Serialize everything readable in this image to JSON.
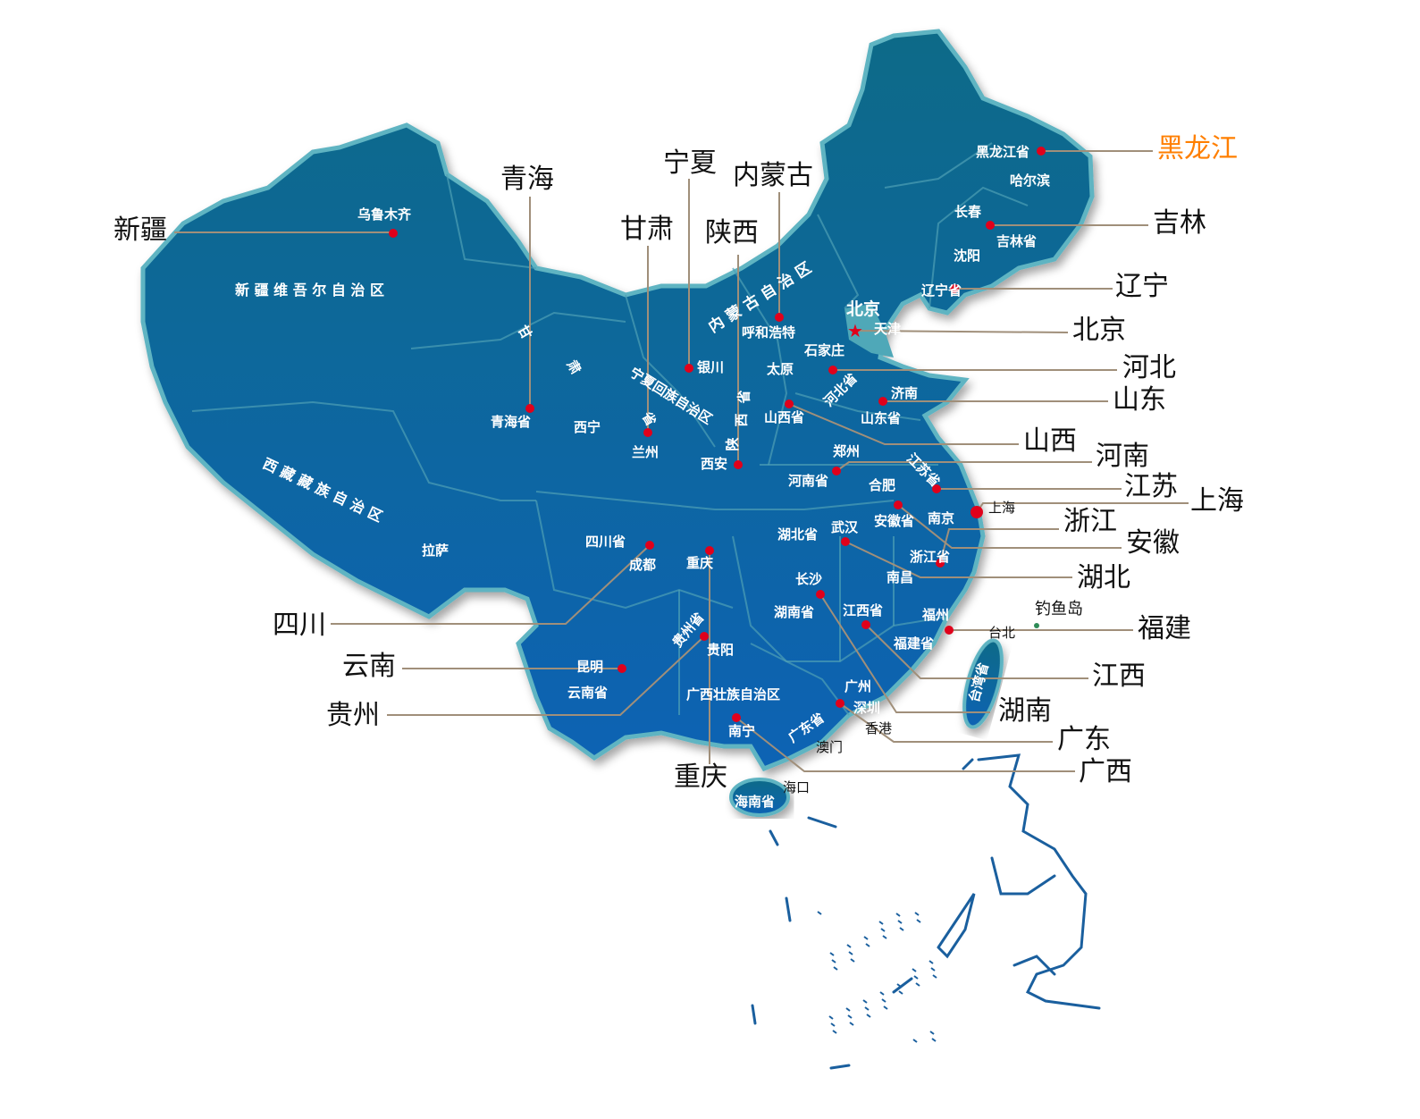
{
  "colors": {
    "map_top": "#0c6a88",
    "map_bottom": "#0b63b4",
    "coast_glow": "#5fb4c2",
    "marker": "#e0001b",
    "leader_line": "#a08f7a",
    "highlight": "#ff7f00",
    "callout_text": "#111111",
    "diaoyu_marker": "#2e8b57"
  },
  "callouts": [
    {
      "label": "新疆"
    },
    {
      "label": "青海"
    },
    {
      "label": "宁夏"
    },
    {
      "label": "内蒙古"
    },
    {
      "label": "甘肃"
    },
    {
      "label": "陕西"
    },
    {
      "label": "黑龙江",
      "highlighted": true
    },
    {
      "label": "吉林"
    },
    {
      "label": "辽宁"
    },
    {
      "label": "北京"
    },
    {
      "label": "河北"
    },
    {
      "label": "山东"
    },
    {
      "label": "山西"
    },
    {
      "label": "河南"
    },
    {
      "label": "江苏"
    },
    {
      "label": "上海"
    },
    {
      "label": "浙江"
    },
    {
      "label": "安徽"
    },
    {
      "label": "湖北"
    },
    {
      "label": "福建"
    },
    {
      "label": "江西"
    },
    {
      "label": "湖南"
    },
    {
      "label": "广东"
    },
    {
      "label": "广西"
    },
    {
      "label": "重庆"
    },
    {
      "label": "四川"
    },
    {
      "label": "云南"
    },
    {
      "label": "贵州"
    }
  ],
  "map_labels": [
    "乌鲁木齐",
    "新 疆 维 吾 尔 自 治 区",
    "甘",
    "肃",
    "省",
    "西宁",
    "青海省",
    "兰州",
    "银川",
    "宁夏回族自治区",
    "内 蒙 古 自 治 区",
    "呼和浩特",
    "北京",
    "天津",
    "石家庄",
    "太原",
    "河北省",
    "济南",
    "山西省",
    "山东省",
    "陕",
    "西",
    "省",
    "西安",
    "郑州",
    "江苏省",
    "河南省",
    "合肥",
    "安徽省",
    "南京",
    "上海",
    "四川省",
    "成都",
    "重庆",
    "湖北省",
    "武汉",
    "浙江省",
    "南昌",
    "长沙",
    "湖南省",
    "江西省",
    "福州",
    "福建省",
    "台北",
    "钓鱼岛",
    "台湾省",
    "贵州省",
    "贵阳",
    "昆明",
    "云南省",
    "广西壮族自治区",
    "广州",
    "深圳",
    "广东省",
    "南宁",
    "香港",
    "澳门",
    "海口",
    "海南省",
    "拉萨",
    "西 藏 藏 族 自 治 区",
    "黑龙江省",
    "哈尔滨",
    "长春",
    "吉林省",
    "沈阳",
    "辽宁省"
  ]
}
